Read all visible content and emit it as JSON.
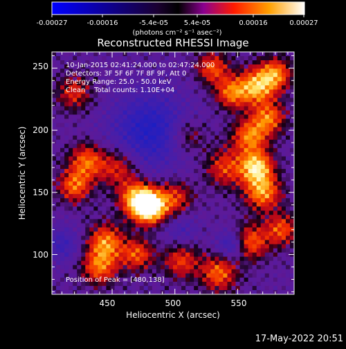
{
  "chart_data": {
    "type": "heatmap",
    "title": "Reconstructed RHESSI Image",
    "xlabel": "Heliocentric X (arcsec)",
    "ylabel": "Heliocentric Y (arcsec)",
    "xlim": [
      402,
      595
    ],
    "ylim": [
      68,
      263
    ],
    "x_ticks": [
      450,
      500,
      550
    ],
    "y_ticks": [
      100,
      150,
      200,
      250
    ],
    "colorbar": {
      "label": "(photons cm⁻² s⁻¹ asec⁻²)",
      "range": [
        -0.00027,
        0.00027
      ],
      "ticks_top": [
        "-5.4e-05",
        "5.4e-05"
      ],
      "ticks_bottom": [
        "-0.00027",
        "-0.00016",
        "0.00016",
        "0.00027"
      ],
      "colors": [
        "#0000ff",
        "#000000",
        "#7a00a8",
        "#ff2000",
        "#ffa000",
        "#ffffff"
      ]
    },
    "annotations": [
      "10-Jan-2015 02:41:24.000 to 02:47:24.000",
      "Detectors: 3F 5F 6F 7F 8F 9F, Att 0",
      "Energy Range: 25.0 - 50.0 keV",
      "Clean    Total counts: 1.10E+04",
      "Position of Peak = [480,138]"
    ],
    "peak": [
      480,
      138
    ]
  },
  "footer": {
    "timestamp": "17-May-2022 20:51"
  }
}
